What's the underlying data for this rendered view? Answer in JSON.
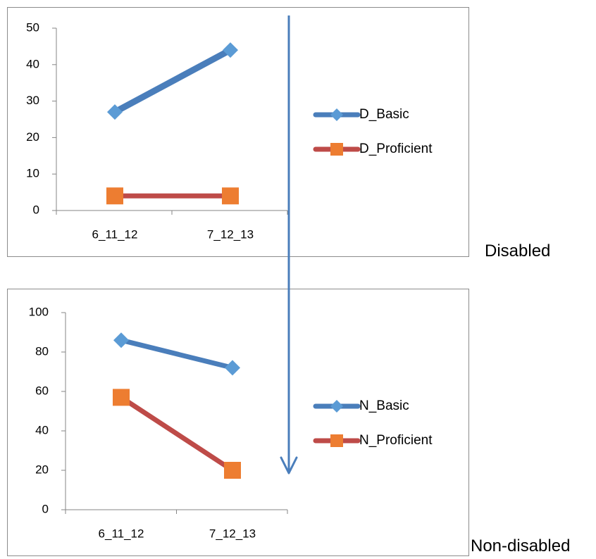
{
  "colors": {
    "basic": "#4a7ebb",
    "basic_marker": "#5b9bd5",
    "proficient": "#be4b48",
    "proficient_marker": "#ed7d31",
    "axis": "#868686",
    "arrow": "#4a7ebb"
  },
  "labels": {
    "top": "Disabled",
    "bottom": "Non-disabled"
  },
  "chart_data": [
    {
      "type": "line",
      "categories": [
        "6_11_12",
        "7_12_13"
      ],
      "series": [
        {
          "name": "D_Basic",
          "values": [
            27,
            44
          ],
          "marker": "diamond"
        },
        {
          "name": "D_Proficient",
          "values": [
            4,
            4
          ],
          "marker": "square"
        }
      ],
      "ylim": [
        0,
        50
      ],
      "yticks": [
        0,
        10,
        20,
        30,
        40,
        50
      ],
      "legend": "right"
    },
    {
      "type": "line",
      "categories": [
        "6_11_12",
        "7_12_13"
      ],
      "series": [
        {
          "name": "N_Basic",
          "values": [
            86,
            72
          ],
          "marker": "diamond"
        },
        {
          "name": "N_Proficient",
          "values": [
            57,
            20
          ],
          "marker": "square"
        }
      ],
      "ylim": [
        0,
        100
      ],
      "yticks": [
        0,
        20,
        40,
        60,
        80,
        100
      ],
      "legend": "right"
    }
  ]
}
